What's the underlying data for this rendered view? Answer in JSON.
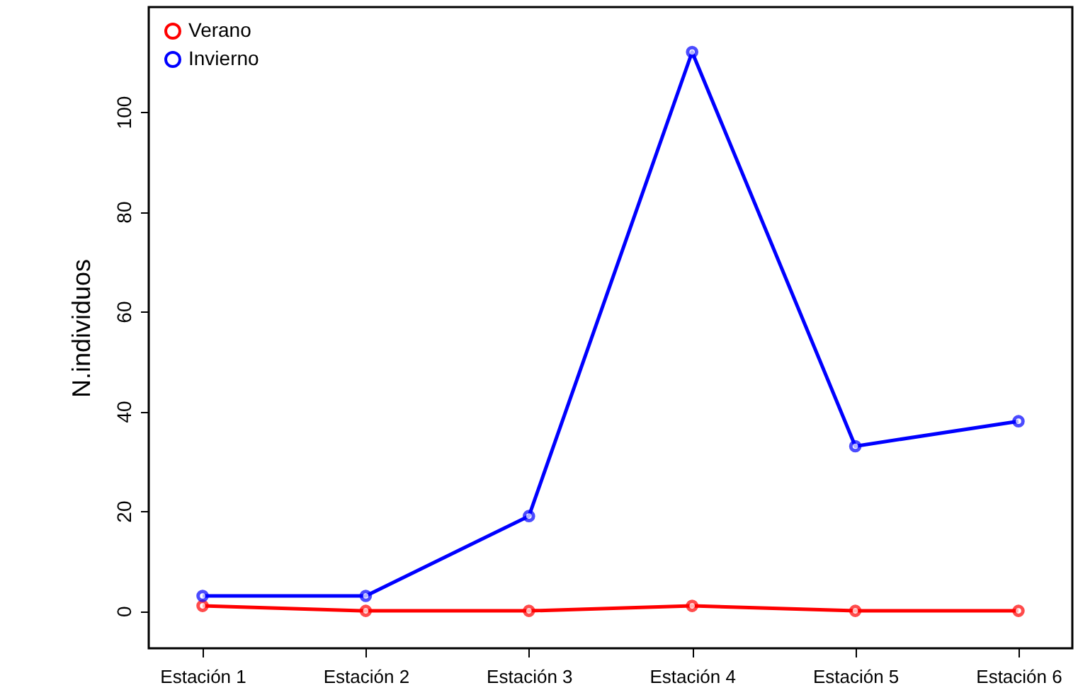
{
  "chart_data": {
    "type": "line",
    "ylabel": "N.individuos",
    "categories": [
      "Estación 1",
      "Estación 2",
      "Estación 3",
      "Estación 4",
      "Estación 5",
      "Estación 6"
    ],
    "series": [
      {
        "name": "Verano",
        "color": "#ff0000",
        "values": [
          1,
          0,
          0,
          1,
          0,
          0
        ]
      },
      {
        "name": "Invierno",
        "color": "#0000ff",
        "values": [
          3,
          3,
          19,
          112,
          33,
          38
        ]
      }
    ],
    "ylim": [
      -7.5,
      121
    ],
    "yticks": [
      0,
      20,
      40,
      60,
      80,
      100
    ],
    "marker": "circle",
    "line_style": "solid",
    "legend": "top left",
    "grid": false
  }
}
